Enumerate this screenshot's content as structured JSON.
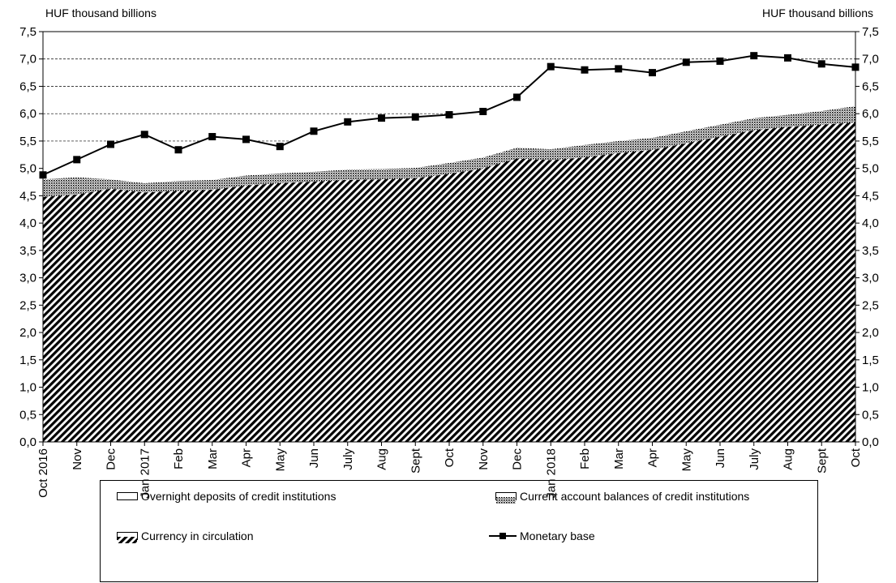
{
  "left_axis_unit": "HUF thousand billions",
  "right_axis_unit": "HUF thousand billions",
  "legend": {
    "overnight": "Overnight deposits of credit institutions",
    "current_account": "Current account balances of credit institutions",
    "currency": "Currency in circulation",
    "monetary_base": "Monetary base"
  },
  "chart_data": {
    "type": "area",
    "categories": [
      "Oct 2016",
      "Nov",
      "Dec",
      "Jan 2017",
      "Feb",
      "Mar",
      "Apr",
      "May",
      "Jun",
      "July",
      "Aug",
      "Sept",
      "Oct",
      "Nov",
      "Dec",
      "Jan 2018",
      "Feb",
      "Mar",
      "Apr",
      "May",
      "Jun",
      "July",
      "Aug",
      "Sept",
      "Oct"
    ],
    "stacked_series": [
      {
        "name": "Currency in circulation",
        "values": [
          4.48,
          4.52,
          4.63,
          4.56,
          4.59,
          4.61,
          4.69,
          4.73,
          4.76,
          4.79,
          4.8,
          4.82,
          4.9,
          5.0,
          5.18,
          5.15,
          5.2,
          5.28,
          5.34,
          5.46,
          5.58,
          5.7,
          5.76,
          5.8,
          5.84
        ]
      },
      {
        "name": "Current account balances of credit institutions",
        "values": [
          0.32,
          0.32,
          0.17,
          0.17,
          0.18,
          0.18,
          0.18,
          0.18,
          0.18,
          0.19,
          0.19,
          0.19,
          0.2,
          0.2,
          0.2,
          0.2,
          0.23,
          0.22,
          0.22,
          0.22,
          0.22,
          0.22,
          0.22,
          0.25,
          0.3
        ]
      },
      {
        "name": "Overnight deposits of credit institutions",
        "values": [
          0.08,
          0.32,
          0.64,
          0.89,
          0.57,
          0.79,
          0.66,
          0.49,
          0.74,
          0.87,
          0.93,
          0.93,
          0.88,
          0.84,
          0.92,
          1.51,
          1.37,
          1.32,
          1.19,
          1.26,
          1.16,
          1.14,
          1.04,
          0.86,
          0.71
        ]
      }
    ],
    "line_series": {
      "name": "Monetary base",
      "values": [
        4.88,
        5.16,
        5.44,
        5.62,
        5.34,
        5.58,
        5.53,
        5.4,
        5.68,
        5.85,
        5.92,
        5.94,
        5.98,
        6.04,
        6.3,
        6.86,
        6.8,
        6.82,
        6.75,
        6.94,
        6.96,
        7.06,
        7.02,
        6.91,
        6.85
      ]
    },
    "ylim": [
      0,
      7.5
    ],
    "yticks": [
      "0,0",
      "0,5",
      "1,0",
      "1,5",
      "2,0",
      "2,5",
      "3,0",
      "3,5",
      "4,0",
      "4,5",
      "5,0",
      "5,5",
      "6,0",
      "6,5",
      "7,0",
      "7,5"
    ],
    "grid": "dashed horizontal at 5.5, 6.0, 6.5, 7.0",
    "legend_position": "bottom"
  }
}
